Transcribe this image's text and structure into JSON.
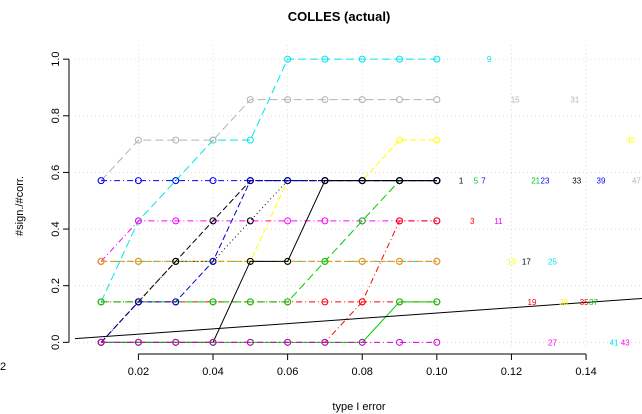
{
  "chart_data": {
    "type": "line",
    "title": "COLLES (actual)",
    "xlabel": "type I error",
    "ylabel": "#sign./#corr.",
    "xlim": [
      0.003,
      0.155
    ],
    "ylim": [
      -0.02,
      1.05
    ],
    "x_ticks": [
      0.02,
      0.04,
      0.06,
      0.08,
      0.1,
      0.12,
      0.14
    ],
    "x_tick_labels": [
      "0.02",
      "0.04",
      "0.06",
      "0.08",
      "0.10",
      "0.12",
      "0.14"
    ],
    "y_ticks": [
      0.0,
      0.2,
      0.4,
      0.6,
      0.8,
      1.0
    ],
    "y_tick_labels": [
      "0.0",
      "0.2",
      "0.4",
      "0.6",
      "0.8",
      "1.0"
    ],
    "left_cut_tick_label": "2",
    "grid": true,
    "x": [
      0.01,
      0.02,
      0.03,
      0.04,
      0.05,
      0.06,
      0.07,
      0.08,
      0.09,
      0.1
    ],
    "series": [
      {
        "color": "#00e5e5",
        "dash": "8,4",
        "values": [
          0.143,
          0.429,
          0.571,
          0.714,
          0.714,
          1.0,
          1.0,
          1.0,
          1.0,
          1.0
        ]
      },
      {
        "color": "#b3b3b3",
        "dash": "8,4",
        "values": [
          0.571,
          0.714,
          0.714,
          0.714,
          0.857,
          0.857,
          0.857,
          0.857,
          0.857,
          0.857
        ]
      },
      {
        "color": "#0000ff",
        "dash": "6,3,1,3",
        "values": [
          0.571,
          0.571,
          0.571,
          0.571,
          0.571,
          0.571,
          0.571,
          0.571,
          0.571,
          0.571
        ]
      },
      {
        "color": "#ffff00",
        "dash": "6,3",
        "values": [
          0.0,
          0.143,
          0.286,
          0.286,
          0.286,
          0.571,
          0.571,
          0.571,
          0.714,
          0.714
        ]
      },
      {
        "color": "#ff00ff",
        "dash": "6,3,1,3",
        "values": [
          0.286,
          0.429,
          0.429,
          0.429,
          0.429,
          0.429,
          0.429,
          0.429,
          0.429,
          0.429
        ]
      },
      {
        "color": "#00cdb0",
        "dash": "6,3,1,3",
        "values": [
          0.286,
          0.286,
          0.286,
          0.286,
          0.286,
          0.286,
          0.286,
          0.286,
          0.286,
          0.286
        ]
      },
      {
        "color": "#ff8c00",
        "dash": "6,3",
        "values": [
          0.286,
          0.286,
          0.286,
          0.286,
          0.286,
          0.286,
          0.286,
          0.286,
          0.286,
          0.286
        ]
      },
      {
        "color": "#ff0000",
        "dash": "6,3,1,3",
        "values": [
          0.143,
          0.143,
          0.143,
          0.143,
          0.143,
          0.143,
          0.143,
          0.143,
          0.143,
          0.143
        ]
      },
      {
        "color": "#00cc00",
        "dash": "8,4",
        "values": [
          0.143,
          0.143,
          0.143,
          0.143,
          0.143,
          0.143,
          0.286,
          0.429,
          0.571,
          0.571
        ]
      },
      {
        "color": "#000000",
        "dash": "6,3",
        "values": [
          0.0,
          0.143,
          0.286,
          0.429,
          0.571,
          0.571,
          0.571,
          0.571,
          0.571,
          0.571
        ]
      },
      {
        "color": "#000000",
        "dash": "1,3",
        "values": [
          0.0,
          0.143,
          0.286,
          0.286,
          0.429,
          0.571,
          0.571,
          0.571,
          0.571,
          0.571
        ]
      },
      {
        "color": "#0000cc",
        "dash": "6,3",
        "values": [
          0.0,
          0.143,
          0.143,
          0.286,
          0.571,
          0.571,
          0.571,
          0.571,
          0.571,
          0.571
        ]
      },
      {
        "color": "#000000",
        "dash": "",
        "values": [
          0.0,
          0.0,
          0.0,
          0.0,
          0.286,
          0.286,
          0.571,
          0.571,
          0.571,
          0.571
        ]
      },
      {
        "color": "#ff0000",
        "dash": "6,3,1,3",
        "values": [
          0.0,
          0.0,
          0.0,
          0.0,
          0.0,
          0.0,
          0.0,
          0.143,
          0.429,
          0.429
        ]
      },
      {
        "color": "#00cc00",
        "dash": "",
        "values": [
          0.0,
          0.0,
          0.0,
          0.0,
          0.0,
          0.0,
          0.0,
          0.0,
          0.143,
          0.143
        ]
      },
      {
        "color": "#cc00cc",
        "dash": "6,3,1,3",
        "values": [
          0.0,
          0.0,
          0.0,
          0.0,
          0.0,
          0.0,
          0.0,
          0.0,
          0.0,
          0.0
        ]
      }
    ],
    "reference_line": {
      "color": "#000000",
      "x": [
        0.003,
        0.155
      ],
      "y": [
        0.013,
        0.155
      ]
    },
    "annotations": [
      {
        "text": "9",
        "x": 0.114,
        "y": 1.0,
        "color": "#00e5e5"
      },
      {
        "text": "15",
        "x": 0.121,
        "y": 0.857,
        "color": "#b3b3b3"
      },
      {
        "text": "31",
        "x": 0.137,
        "y": 0.857,
        "color": "#b3b3b3"
      },
      {
        "text": "45",
        "x": 0.152,
        "y": 0.714,
        "color": "#ffff00"
      },
      {
        "text": "1",
        "x": 0.1065,
        "y": 0.571,
        "color": "#000000"
      },
      {
        "text": "5",
        "x": 0.1105,
        "y": 0.571,
        "color": "#00cc00"
      },
      {
        "text": "7",
        "x": 0.1125,
        "y": 0.571,
        "color": "#0000ff"
      },
      {
        "text": "21",
        "x": 0.1265,
        "y": 0.571,
        "color": "#00cc00"
      },
      {
        "text": "23",
        "x": 0.129,
        "y": 0.571,
        "color": "#0000ff"
      },
      {
        "text": "33",
        "x": 0.1375,
        "y": 0.571,
        "color": "#000000"
      },
      {
        "text": "39",
        "x": 0.144,
        "y": 0.571,
        "color": "#0000ff"
      },
      {
        "text": "47",
        "x": 0.1535,
        "y": 0.571,
        "color": "#b3b3b3"
      },
      {
        "text": "3",
        "x": 0.1095,
        "y": 0.429,
        "color": "#ff0000"
      },
      {
        "text": "11",
        "x": 0.1165,
        "y": 0.429,
        "color": "#ff00ff"
      },
      {
        "text": "13",
        "x": 0.12,
        "y": 0.286,
        "color": "#ffff00"
      },
      {
        "text": "17",
        "x": 0.124,
        "y": 0.286,
        "color": "#000000"
      },
      {
        "text": "25",
        "x": 0.131,
        "y": 0.286,
        "color": "#00e5e5"
      },
      {
        "text": "19",
        "x": 0.1255,
        "y": 0.143,
        "color": "#ff0000"
      },
      {
        "text": "29",
        "x": 0.134,
        "y": 0.143,
        "color": "#ffff00"
      },
      {
        "text": "35",
        "x": 0.1395,
        "y": 0.143,
        "color": "#ff0000"
      },
      {
        "text": "37",
        "x": 0.142,
        "y": 0.143,
        "color": "#00cc00"
      },
      {
        "text": "27",
        "x": 0.131,
        "y": 0.0,
        "color": "#ff00ff"
      },
      {
        "text": "41",
        "x": 0.1475,
        "y": 0.0,
        "color": "#00e5e5"
      },
      {
        "text": "43",
        "x": 0.1505,
        "y": 0.0,
        "color": "#ff00ff"
      }
    ]
  }
}
